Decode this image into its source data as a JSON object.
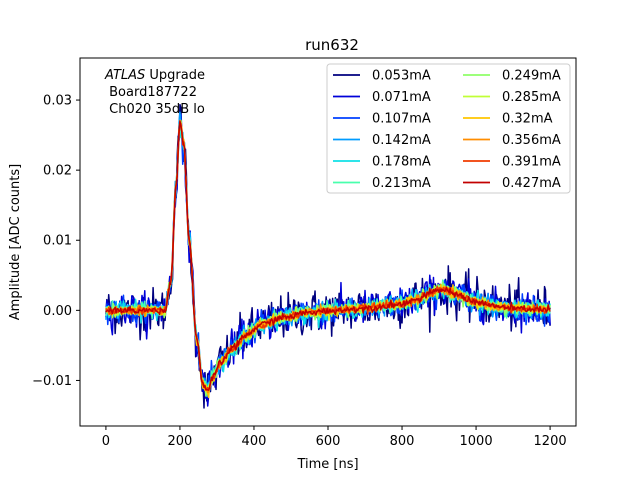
{
  "chart_data": {
    "type": "line",
    "title": "run632",
    "xlabel": "Time [ns]",
    "ylabel": "Amplitude [ADC counts]",
    "xlim": [
      -70,
      1270
    ],
    "ylim": [
      -0.0165,
      0.036
    ],
    "xticks": [
      0,
      200,
      400,
      600,
      800,
      1000,
      1200
    ],
    "xtick_labels": [
      "0",
      "200",
      "400",
      "600",
      "800",
      "1000",
      "1200"
    ],
    "yticks": [
      -0.01,
      0.0,
      0.01,
      0.02,
      0.03
    ],
    "ytick_labels": [
      "−0.01",
      "0.00",
      "0.01",
      "0.02",
      "0.03"
    ],
    "grid": false,
    "legend_position": "upper-right",
    "legend_columns": 2,
    "annotation": {
      "line1_italic": "ATLAS",
      "line1_rest": " Upgrade",
      "line2": " Board187722",
      "line3": " Ch020 35dB lo"
    },
    "pulse_shape": {
      "description_free": true,
      "t": [
        0,
        160,
        175,
        190,
        200,
        210,
        225,
        245,
        262,
        275,
        290,
        310,
        340,
        380,
        420,
        480,
        550,
        620,
        700,
        780,
        840,
        880,
        910,
        950,
        1000,
        1060,
        1120,
        1200
      ],
      "amplitude": [
        0.0,
        0.0,
        0.004,
        0.018,
        0.027,
        0.024,
        0.01,
        -0.004,
        -0.0105,
        -0.0115,
        -0.0095,
        -0.0075,
        -0.0055,
        -0.0035,
        -0.002,
        -0.001,
        -0.0003,
        0.0,
        0.0003,
        0.0008,
        0.0015,
        0.0025,
        0.003,
        0.0022,
        0.0012,
        0.0005,
        0.0002,
        0.0001
      ]
    },
    "series": [
      {
        "name": "0.053mA",
        "color": "#00007f",
        "noise": 0.0016
      },
      {
        "name": "0.071mA",
        "color": "#0000d9",
        "noise": 0.0012
      },
      {
        "name": "0.107mA",
        "color": "#0040ff",
        "noise": 0.0009
      },
      {
        "name": "0.142mA",
        "color": "#009cff",
        "noise": 0.0007
      },
      {
        "name": "0.178mA",
        "color": "#10e0e6",
        "noise": 0.0006
      },
      {
        "name": "0.213mA",
        "color": "#49ffad",
        "noise": 0.0005
      },
      {
        "name": "0.249mA",
        "color": "#8fff68",
        "noise": 0.00045
      },
      {
        "name": "0.285mA",
        "color": "#c0ff36",
        "noise": 0.0004
      },
      {
        "name": "0.32mA",
        "color": "#ffc600",
        "noise": 0.00035
      },
      {
        "name": "0.356mA",
        "color": "#ff8d00",
        "noise": 0.0003
      },
      {
        "name": "0.391mA",
        "color": "#f03b00",
        "noise": 0.00028
      },
      {
        "name": "0.427mA",
        "color": "#c20000",
        "noise": 0.00025
      }
    ]
  }
}
